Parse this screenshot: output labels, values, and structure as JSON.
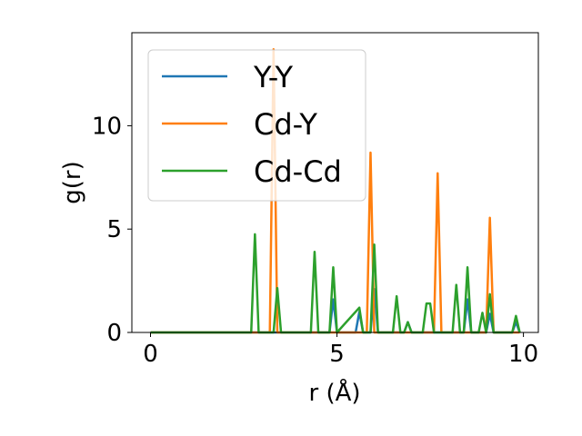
{
  "chart_data": {
    "type": "line",
    "title": "",
    "xlabel": "r (Å)",
    "ylabel": "g(r)",
    "xlim": [
      -0.5,
      10.4
    ],
    "ylim": [
      0,
      14.5
    ],
    "xticks": [
      0,
      5,
      10
    ],
    "xtick_labels": [
      "0",
      "5",
      "10"
    ],
    "yticks": [
      0,
      5,
      10
    ],
    "ytick_labels": [
      "0",
      "5",
      "10"
    ],
    "grid": false,
    "legend_position": "top-left",
    "series": [
      {
        "name": "Y-Y",
        "color": "#1f77b4",
        "points": [
          [
            0,
            0
          ],
          [
            2.7,
            0
          ],
          [
            2.8,
            0
          ],
          [
            2.9,
            0
          ],
          [
            3.3,
            0
          ],
          [
            3.4,
            0
          ],
          [
            3.5,
            0
          ],
          [
            4.3,
            0
          ],
          [
            4.4,
            0
          ],
          [
            4.5,
            0
          ],
          [
            4.8,
            0
          ],
          [
            4.9,
            1.6
          ],
          [
            5.0,
            0
          ],
          [
            5.5,
            0
          ],
          [
            5.6,
            1.0
          ],
          [
            5.7,
            0
          ],
          [
            5.9,
            0
          ],
          [
            6.0,
            2.1
          ],
          [
            6.1,
            0
          ],
          [
            6.5,
            0
          ],
          [
            6.6,
            0
          ],
          [
            6.7,
            0
          ],
          [
            6.8,
            0
          ],
          [
            6.9,
            0.5
          ],
          [
            7.0,
            0
          ],
          [
            7.3,
            0
          ],
          [
            7.4,
            0
          ],
          [
            7.5,
            0
          ],
          [
            7.6,
            0
          ],
          [
            8.1,
            0
          ],
          [
            8.2,
            0
          ],
          [
            8.3,
            0
          ],
          [
            8.4,
            0
          ],
          [
            8.5,
            1.6
          ],
          [
            8.6,
            0
          ],
          [
            8.8,
            0
          ],
          [
            8.9,
            0
          ],
          [
            9.0,
            0
          ],
          [
            9.1,
            0.9
          ],
          [
            9.2,
            0
          ],
          [
            9.7,
            0
          ],
          [
            9.8,
            0.5
          ],
          [
            9.9,
            0
          ]
        ]
      },
      {
        "name": "Cd-Y",
        "color": "#ff7f0e",
        "points": [
          [
            0,
            0
          ],
          [
            3.2,
            0
          ],
          [
            3.3,
            13.7
          ],
          [
            3.4,
            0
          ],
          [
            5.8,
            0
          ],
          [
            5.9,
            8.7
          ],
          [
            6.0,
            0
          ],
          [
            7.6,
            0
          ],
          [
            7.7,
            7.7
          ],
          [
            7.8,
            0
          ],
          [
            9.0,
            0
          ],
          [
            9.1,
            5.55
          ],
          [
            9.2,
            0
          ],
          [
            9.9,
            0
          ]
        ]
      },
      {
        "name": "Cd-Cd",
        "color": "#2ca02c",
        "points": [
          [
            0,
            0
          ],
          [
            2.7,
            0
          ],
          [
            2.8,
            4.75
          ],
          [
            2.9,
            0
          ],
          [
            3.3,
            0
          ],
          [
            3.4,
            2.15
          ],
          [
            3.5,
            0
          ],
          [
            4.3,
            0
          ],
          [
            4.4,
            3.9
          ],
          [
            4.5,
            0
          ],
          [
            4.8,
            0
          ],
          [
            4.9,
            3.15
          ],
          [
            5.0,
            0
          ],
          [
            5.6,
            1.2
          ],
          [
            5.7,
            0
          ],
          [
            5.9,
            0
          ],
          [
            6.0,
            4.25
          ],
          [
            6.1,
            0
          ],
          [
            6.5,
            0
          ],
          [
            6.6,
            1.75
          ],
          [
            6.7,
            0
          ],
          [
            6.8,
            0
          ],
          [
            6.9,
            0.5
          ],
          [
            7.0,
            0
          ],
          [
            7.3,
            0
          ],
          [
            7.4,
            1.4
          ],
          [
            7.5,
            1.4
          ],
          [
            7.6,
            0
          ],
          [
            8.1,
            0
          ],
          [
            8.2,
            2.3
          ],
          [
            8.3,
            0
          ],
          [
            8.4,
            0
          ],
          [
            8.5,
            3.15
          ],
          [
            8.6,
            0
          ],
          [
            8.8,
            0
          ],
          [
            8.9,
            0.95
          ],
          [
            9.0,
            0
          ],
          [
            9.1,
            1.85
          ],
          [
            9.2,
            0
          ],
          [
            9.7,
            0
          ],
          [
            9.8,
            0.8
          ],
          [
            9.9,
            0
          ]
        ]
      }
    ]
  }
}
